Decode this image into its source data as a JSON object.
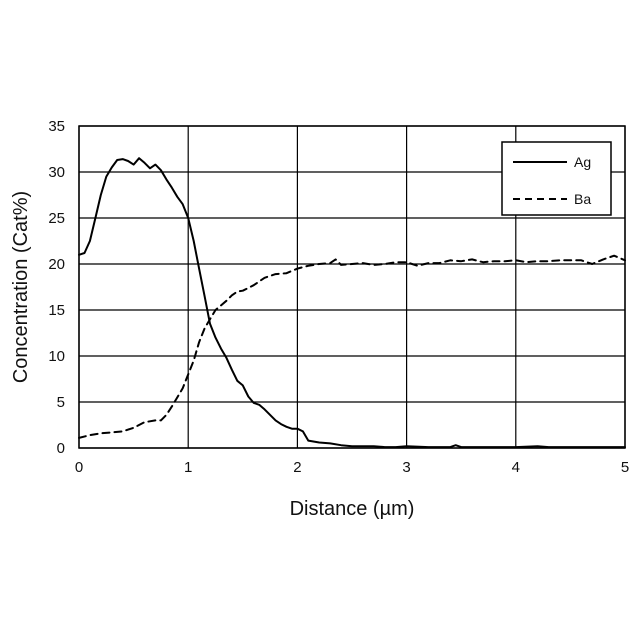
{
  "chart_data": {
    "type": "line",
    "title": "",
    "xlabel": "Distance (µm)",
    "ylabel": "Concentration (Cat%)",
    "xlim": [
      0,
      5
    ],
    "ylim": [
      0,
      35
    ],
    "xticks": [
      0,
      1,
      2,
      3,
      4,
      5
    ],
    "yticks": [
      0,
      5,
      10,
      15,
      20,
      25,
      30,
      35
    ],
    "xtick_labels": [
      "0",
      "1",
      "2",
      "3",
      "4",
      "5"
    ],
    "ytick_labels": [
      "0",
      "5",
      "10",
      "15",
      "20",
      "25",
      "30",
      "35"
    ],
    "grid": true,
    "legend_position": "top-right",
    "series": [
      {
        "name": "Ag",
        "line_style": "solid",
        "color": "#000000",
        "x": [
          0,
          0.05,
          0.1,
          0.15,
          0.2,
          0.25,
          0.3,
          0.35,
          0.4,
          0.45,
          0.5,
          0.55,
          0.6,
          0.65,
          0.7,
          0.75,
          0.8,
          0.85,
          0.9,
          0.95,
          1.0,
          1.05,
          1.1,
          1.15,
          1.2,
          1.25,
          1.3,
          1.35,
          1.4,
          1.45,
          1.5,
          1.55,
          1.6,
          1.65,
          1.7,
          1.75,
          1.8,
          1.85,
          1.9,
          1.95,
          2.0,
          2.05,
          2.1,
          2.2,
          2.3,
          2.4,
          2.5,
          2.6,
          2.7,
          2.8,
          2.9,
          3.0,
          3.2,
          3.4,
          3.45,
          3.5,
          3.6,
          3.8,
          4.0,
          4.2,
          4.3,
          4.5,
          4.7,
          5.0
        ],
        "y": [
          21,
          21.2,
          22.5,
          25,
          27.5,
          29.5,
          30.5,
          31.3,
          31.4,
          31.2,
          30.8,
          31.5,
          31,
          30.4,
          30.8,
          30.2,
          29.2,
          28.3,
          27.3,
          26.5,
          25,
          22.5,
          19.5,
          16.5,
          13.5,
          12,
          10.8,
          9.8,
          8.5,
          7.3,
          6.8,
          5.6,
          4.9,
          4.7,
          4.2,
          3.6,
          3,
          2.6,
          2.3,
          2.1,
          2.1,
          1.8,
          0.8,
          0.6,
          0.5,
          0.3,
          0.2,
          0.2,
          0.2,
          0.1,
          0.1,
          0.2,
          0.1,
          0.1,
          0.3,
          0.1,
          0.1,
          0.1,
          0.1,
          0.2,
          0.1,
          0.1,
          0.1,
          0.1
        ]
      },
      {
        "name": "Ba",
        "line_style": "dashed",
        "color": "#000000",
        "x": [
          0,
          0.1,
          0.2,
          0.3,
          0.4,
          0.5,
          0.6,
          0.7,
          0.75,
          0.8,
          0.85,
          0.9,
          0.95,
          1.0,
          1.05,
          1.1,
          1.15,
          1.2,
          1.25,
          1.3,
          1.35,
          1.4,
          1.45,
          1.5,
          1.6,
          1.7,
          1.8,
          1.9,
          2.0,
          2.1,
          2.2,
          2.3,
          2.35,
          2.4,
          2.5,
          2.6,
          2.7,
          2.8,
          2.9,
          3.0,
          3.1,
          3.2,
          3.3,
          3.4,
          3.5,
          3.6,
          3.7,
          3.8,
          3.9,
          4.0,
          4.1,
          4.2,
          4.3,
          4.4,
          4.5,
          4.6,
          4.7,
          4.8,
          4.9,
          5.0
        ],
        "y": [
          1.1,
          1.4,
          1.6,
          1.7,
          1.8,
          2.2,
          2.8,
          3.0,
          3.0,
          3.6,
          4.5,
          5.5,
          6.5,
          8.0,
          9.5,
          11.5,
          13.0,
          14.0,
          15.0,
          15.5,
          16.0,
          16.6,
          17.0,
          17.1,
          17.7,
          18.5,
          18.9,
          19.0,
          19.5,
          19.8,
          20.0,
          20.1,
          20.5,
          19.9,
          20.0,
          20.1,
          19.9,
          20.0,
          20.2,
          20.2,
          19.8,
          20.1,
          20.1,
          20.4,
          20.3,
          20.5,
          20.2,
          20.3,
          20.3,
          20.4,
          20.2,
          20.3,
          20.3,
          20.4,
          20.4,
          20.4,
          20.0,
          20.5,
          20.9,
          20.4
        ]
      }
    ]
  }
}
